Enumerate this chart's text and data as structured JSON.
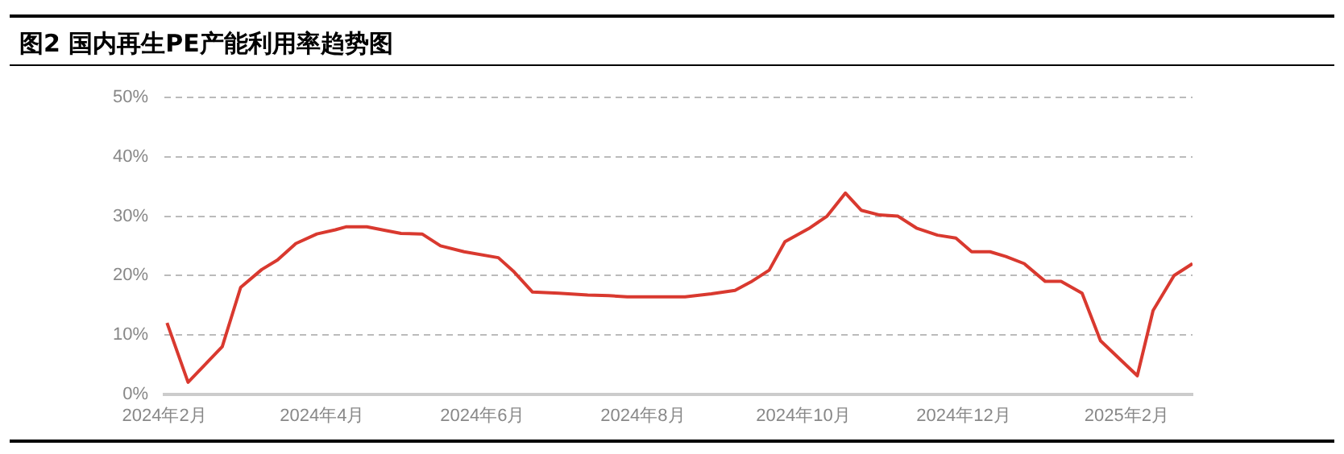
{
  "chart_data": {
    "type": "line",
    "title": "图2 国内再生PE产能利用率趋势图",
    "x": [
      "2024-02-02",
      "2024-02-10",
      "2024-02-23",
      "2024-03-01",
      "2024-03-09",
      "2024-03-15",
      "2024-03-22",
      "2024-03-30",
      "2024-04-06",
      "2024-04-10",
      "2024-04-18",
      "2024-04-25",
      "2024-05-01",
      "2024-05-09",
      "2024-05-16",
      "2024-05-25",
      "2024-06-07",
      "2024-06-13",
      "2024-06-20",
      "2024-06-30",
      "2024-07-11",
      "2024-07-19",
      "2024-07-26",
      "2024-08-06",
      "2024-08-17",
      "2024-08-27",
      "2024-09-05",
      "2024-09-11",
      "2024-09-18",
      "2024-09-24",
      "2024-10-03",
      "2024-10-10",
      "2024-10-17",
      "2024-10-23",
      "2024-10-30",
      "2024-11-06",
      "2024-11-13",
      "2024-11-21",
      "2024-11-28",
      "2024-12-04",
      "2024-12-11",
      "2024-12-17",
      "2024-12-24",
      "2025-01-01",
      "2025-01-07",
      "2025-01-15",
      "2025-01-22",
      "2025-02-05",
      "2025-02-11",
      "2025-02-19",
      "2025-02-26"
    ],
    "series": [
      {
        "color": "#d9392f",
        "values": [
          12,
          2,
          8,
          18,
          21,
          22.6,
          25.4,
          27,
          27.7,
          28.2,
          28.2,
          27.6,
          27.1,
          27,
          25,
          24,
          23,
          20.6,
          17.2,
          17,
          16.7,
          16.6,
          16.4,
          16.4,
          16.4,
          16.9,
          17.5,
          18.9,
          20.9,
          25.7,
          27.9,
          30,
          33.9,
          31,
          30.2,
          30,
          28,
          26.8,
          26.3,
          24,
          24,
          23.2,
          22,
          19,
          19,
          17,
          9,
          3.1,
          14.1,
          20,
          22
        ]
      }
    ],
    "xlim": [
      "2024-02-01",
      "2025-02-26"
    ],
    "xticks": [
      {
        "value": "2024-02-01",
        "label": "2024年2月"
      },
      {
        "value": "2024-04-01",
        "label": "2024年4月"
      },
      {
        "value": "2024-06-01",
        "label": "2024年6月"
      },
      {
        "value": "2024-08-01",
        "label": "2024年8月"
      },
      {
        "value": "2024-10-01",
        "label": "2024年10月"
      },
      {
        "value": "2024-12-01",
        "label": "2024年12月"
      },
      {
        "value": "2025-02-01",
        "label": "2025年2月"
      }
    ],
    "ylim": [
      0,
      50
    ],
    "yticks": [
      {
        "value": 0,
        "label": "0%"
      },
      {
        "value": 10,
        "label": "10%"
      },
      {
        "value": 20,
        "label": "20%"
      },
      {
        "value": 30,
        "label": "30%"
      },
      {
        "value": 40,
        "label": "40%"
      },
      {
        "value": 50,
        "label": "50%"
      }
    ],
    "grid": "y",
    "marker": "none",
    "line_style": "solid",
    "legend": false
  }
}
